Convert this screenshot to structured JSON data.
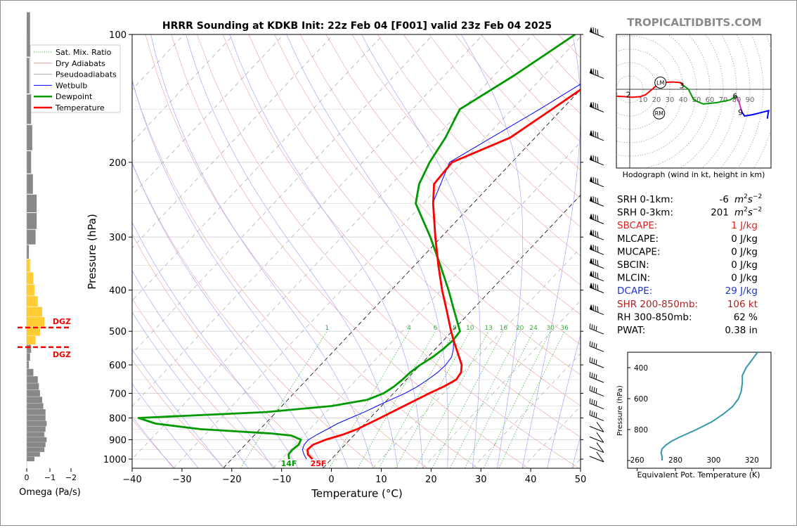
{
  "title": "HRRR Sounding at KDKB Init: 22z Feb 04 [F001] valid 23z Feb 04 2025",
  "brand": "TROPICALTIDBITS.COM",
  "chart_data": [
    {
      "type": "line",
      "name": "skew-t",
      "xlabel": "Temperature (°C)",
      "ylabel": "Pressure (hPa)",
      "xlim": [
        -40,
        50
      ],
      "ylim": [
        1050,
        100
      ],
      "log_y": true,
      "xticks": [
        -40,
        -30,
        -20,
        -10,
        0,
        10,
        20,
        30,
        40,
        50
      ],
      "yticks": [
        100,
        200,
        300,
        400,
        500,
        600,
        700,
        800,
        900,
        1000
      ],
      "legend": [
        "Sat. Mix. Ratio",
        "Dry Adiabats",
        "Pseudoadiabats",
        "Wetbulb",
        "Dewpoint",
        "Temperature"
      ],
      "legend_position": "top-left",
      "mixing_ratio_labels": [
        "1",
        "4",
        "6",
        "8",
        "10",
        "13",
        "16",
        "20",
        "24",
        "30",
        "36"
      ],
      "dgz_label": "DGZ",
      "surface_dewpoint_label": "14F",
      "surface_temp_label": "25F",
      "series": [
        {
          "name": "Temperature",
          "color": "#ff0000",
          "p": [
            1000,
            975,
            950,
            925,
            900,
            875,
            850,
            800,
            750,
            700,
            675,
            650,
            625,
            600,
            575,
            550,
            525,
            500,
            450,
            400,
            350,
            300,
            250,
            225,
            200,
            175,
            150,
            125,
            100
          ],
          "t": [
            -3.8,
            -5.6,
            -6.6,
            -6.4,
            -4.8,
            -2.3,
            -0.5,
            2.0,
            4.5,
            7.2,
            8.8,
            10.0,
            9.6,
            8.3,
            6.3,
            4.2,
            2.0,
            -0.2,
            -4.7,
            -9.8,
            -15.2,
            -21.2,
            -28.0,
            -31.5,
            -32.0,
            -25.0,
            -22.0,
            -18.5,
            -14.0
          ]
        },
        {
          "name": "Dewpoint",
          "color": "#009900",
          "p": [
            1000,
            975,
            950,
            925,
            900,
            880,
            870,
            850,
            825,
            800,
            775,
            750,
            725,
            700,
            675,
            650,
            625,
            600,
            575,
            550,
            525,
            500,
            450,
            400,
            350,
            300,
            250,
            225,
            200,
            175,
            150,
            125,
            100
          ],
          "t": [
            -8.5,
            -9.5,
            -9.6,
            -9.3,
            -9.8,
            -12.5,
            -17.0,
            -32.0,
            -42.0,
            -46.5,
            -22.0,
            -10.0,
            -4.0,
            -2.0,
            -1.2,
            -0.8,
            -0.6,
            0.0,
            1.0,
            1.6,
            1.9,
            1.6,
            -3.2,
            -8.5,
            -14.8,
            -22.2,
            -31.5,
            -34.5,
            -36.5,
            -38.0,
            -40.5,
            -36.0,
            -31.5
          ]
        },
        {
          "name": "Wetbulb",
          "color": "#0000ff",
          "p": [
            1000,
            975,
            950,
            925,
            900,
            875,
            850,
            825,
            800,
            775,
            750,
            725,
            700,
            675,
            650,
            625,
            600,
            575,
            550,
            525,
            500,
            450,
            400,
            350,
            300,
            250,
            200,
            150,
            100
          ],
          "t": [
            -5.0,
            -6.4,
            -7.6,
            -8.2,
            -8.3,
            -7.5,
            -6.5,
            -5.5,
            -4.0,
            -2.3,
            -0.9,
            0.7,
            2.3,
            3.5,
            4.3,
            4.9,
            5.1,
            4.8,
            3.6,
            2.0,
            -0.3,
            -4.8,
            -9.9,
            -15.3,
            -21.3,
            -28.1,
            -32.5,
            -24.5,
            -14.2
          ]
        }
      ],
      "wind_barb_levels": [
        100,
        125,
        150,
        175,
        200,
        225,
        250,
        275,
        300,
        325,
        350,
        375,
        400,
        450,
        500,
        550,
        600,
        650,
        700,
        750,
        800,
        850,
        900,
        950,
        1000
      ],
      "colors": {
        "temperature": "#ff0000",
        "dewpoint": "#009900",
        "wetbulb": "#0000ff",
        "dry_adiabat": "#e8a0a0",
        "pseudoadiabat": "#9999ff",
        "mix_ratio": "#33aa33",
        "grid": "#d9d9d9",
        "brand": "#8a8a8a"
      }
    },
    {
      "type": "bar",
      "name": "omega",
      "xlabel": "Omega (Pa/s)",
      "xticks": [
        "0",
        "−1",
        "−2"
      ],
      "p": [
        100,
        125,
        150,
        175,
        200,
        225,
        250,
        275,
        300,
        325,
        350,
        375,
        400,
        425,
        450,
        475,
        500,
        525,
        550,
        575,
        600,
        625,
        650,
        675,
        700,
        725,
        750,
        775,
        800,
        825,
        850,
        875,
        900,
        925,
        950,
        975,
        1000
      ],
      "values": [
        -0.15,
        -0.12,
        -0.2,
        -0.25,
        -0.2,
        -0.28,
        -0.45,
        -0.45,
        -0.4,
        -0.1,
        -0.15,
        -0.3,
        -0.35,
        -0.5,
        -0.7,
        -0.8,
        -0.6,
        -0.4,
        -0.2,
        -0.15,
        -0.1,
        -0.3,
        -0.5,
        -0.55,
        -0.6,
        -0.7,
        -0.75,
        -0.85,
        -0.85,
        -0.9,
        -0.85,
        -0.8,
        -0.9,
        -0.85,
        -0.8,
        -0.6,
        -0.35
      ],
      "dgz_top_p": 490,
      "dgz_bottom_p": 545,
      "colors": {
        "dgz": "#ffcc33",
        "normal": "#888888"
      }
    },
    {
      "type": "line",
      "name": "hodograph",
      "caption": "Hodograph (wind in kt, height in km)",
      "ring_labels": [
        "10",
        "20",
        "30",
        "40",
        "50",
        "60",
        "70",
        "80",
        "90"
      ],
      "height_labels": [
        "1",
        "2",
        "3",
        "6",
        "9"
      ],
      "storm_motion_labels": [
        "LM",
        "RM"
      ],
      "segments": [
        {
          "color": "#ff0000",
          "u": [
            -18,
            -12,
            -4,
            2,
            8,
            12,
            18,
            20,
            25,
            32,
            38,
            40
          ],
          "v": [
            -3,
            -5,
            -5.5,
            -6,
            -5.5,
            -4,
            1,
            3,
            5,
            5.5,
            5,
            3
          ]
        },
        {
          "color": "#009900",
          "u": [
            40,
            44,
            48,
            55,
            65,
            75,
            80
          ],
          "v": [
            3,
            0,
            -8,
            -11,
            -10,
            -8,
            -5
          ]
        },
        {
          "color": "#cc33cc",
          "u": [
            80,
            82,
            84
          ],
          "v": [
            -5,
            -10,
            -17
          ]
        },
        {
          "color": "#0000ff",
          "u": [
            84,
            86,
            92,
            100,
            104,
            103
          ],
          "v": [
            -17,
            -20,
            -19,
            -17,
            -16,
            -22
          ]
        }
      ],
      "height_points": [
        [
          -15,
          -3
        ],
        [
          0,
          -4
        ],
        [
          40,
          3
        ],
        [
          80,
          -5
        ],
        [
          84,
          -17
        ]
      ],
      "storm_motion_points": [
        [
          23,
          5
        ],
        [
          22,
          -18
        ]
      ]
    },
    {
      "type": "line",
      "name": "theta-e",
      "xlabel": "Equivalent Pot. Temperature (K)",
      "ylabel": "Pressure (hPa)",
      "xlim": [
        255,
        330
      ],
      "ylim": [
        1050,
        300
      ],
      "xticks": [
        260,
        280,
        300,
        320
      ],
      "yticks": [
        400,
        600,
        800,
        1000
      ],
      "color": "#3399aa",
      "p": [
        1000,
        975,
        950,
        925,
        900,
        875,
        850,
        800,
        750,
        700,
        650,
        600,
        550,
        500,
        450,
        400,
        350,
        300
      ],
      "theta_e": [
        273,
        273,
        272.5,
        273,
        275,
        278,
        282,
        291,
        299,
        305,
        310,
        313,
        314.5,
        315,
        315,
        317,
        320,
        323
      ]
    }
  ],
  "stats": [
    {
      "label": "SRH 0-1km:",
      "value": "-6",
      "unit_base": "m",
      "unit_sup1": "2",
      "unit_mid": "s",
      "unit_sup2": "−2",
      "color": "#000000"
    },
    {
      "label": "SRH 0-3km:",
      "value": "201",
      "unit_base": "m",
      "unit_sup1": "2",
      "unit_mid": "s",
      "unit_sup2": "−2",
      "color": "#000000"
    },
    {
      "label": "SBCAPE:",
      "value": "1 J/kg",
      "color": "#dd2222"
    },
    {
      "label": "MLCAPE:",
      "value": "0 J/kg",
      "color": "#000000"
    },
    {
      "label": "MUCAPE:",
      "value": "0 J/kg",
      "color": "#000000"
    },
    {
      "label": "SBCIN:",
      "value": "0 J/kg",
      "color": "#000000"
    },
    {
      "label": "MLCIN:",
      "value": "0 J/kg",
      "color": "#000000"
    },
    {
      "label": "DCAPE:",
      "value": "29 J/kg",
      "color": "#2233cc"
    },
    {
      "label": "SHR 200-850mb:",
      "value": "106 kt",
      "color": "#aa2222"
    },
    {
      "label": "RH 300-850mb:",
      "value": "62 %",
      "color": "#000000"
    },
    {
      "label": "PWAT:",
      "value": "0.38 in",
      "color": "#000000"
    }
  ]
}
